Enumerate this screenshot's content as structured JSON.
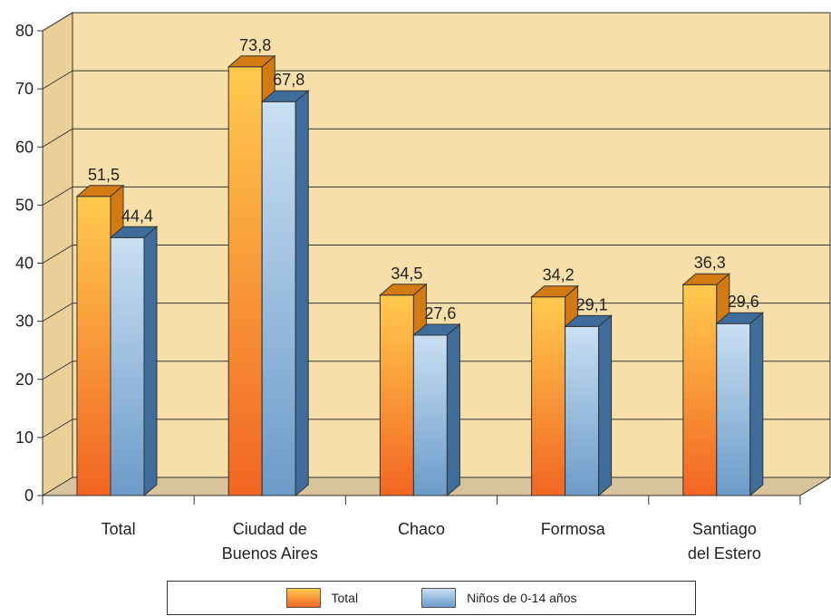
{
  "chart_data": {
    "type": "bar",
    "categories": [
      [
        "Total"
      ],
      [
        "Ciudad de",
        "Buenos Aires"
      ],
      [
        "Chaco"
      ],
      [
        "Formosa"
      ],
      [
        "Santiago",
        "del Estero"
      ]
    ],
    "series": [
      {
        "name": "Total",
        "values": [
          51.5,
          73.8,
          34.5,
          34.2,
          36.3
        ],
        "labels": [
          "51,5",
          "73,8",
          "34,5",
          "34,2",
          "36,3"
        ]
      },
      {
        "name": "Niños de 0-14 años",
        "values": [
          44.4,
          67.8,
          27.6,
          29.1,
          29.6
        ],
        "labels": [
          "44,4",
          "67,8",
          "27,6",
          "29,1",
          "29,6"
        ]
      }
    ],
    "ylim": [
      0,
      80
    ],
    "yticks": [
      "0",
      "10",
      "20",
      "30",
      "40",
      "50",
      "60",
      "70",
      "80"
    ],
    "grid": true,
    "three_d": true,
    "legend_position": "bottom",
    "colors": {
      "wall": "#f7dfaa",
      "side_wall": "#ebcf98",
      "floor": "#d8c39c",
      "grid": "#333333",
      "total_top": "#ffca4e",
      "total_bottom": "#f26522",
      "total_side": "#d47a12",
      "kids_top": "#c9dff3",
      "kids_bottom": "#6b9bc9",
      "kids_side": "#3e6d9c"
    }
  },
  "legend": {
    "items": [
      {
        "label": "Total"
      },
      {
        "label": "Niños de 0-14 años"
      }
    ]
  }
}
